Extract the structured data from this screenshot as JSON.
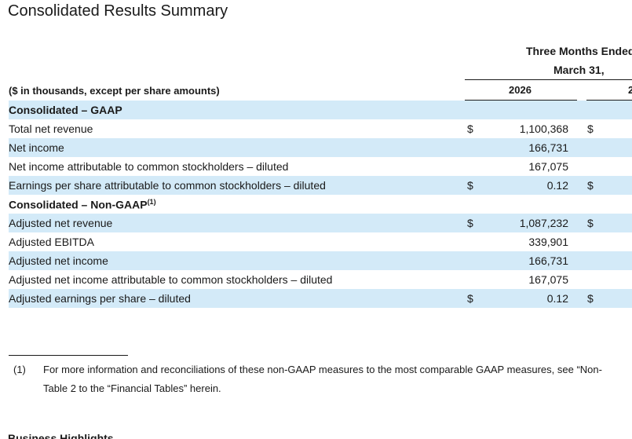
{
  "title": "Consolidated Results Summary",
  "header": {
    "period_line1": "Three Months Ended",
    "period_line2": "March 31,",
    "units": "($ in thousands, except per share amounts)",
    "year1": "2026",
    "year2": "2"
  },
  "rows": [
    {
      "label": "Consolidated – GAAP",
      "section": true
    },
    {
      "label": "Total net revenue",
      "cur1": "$",
      "val1": "1,100,368",
      "cur2": "$"
    },
    {
      "label": "Net income",
      "cur1": "",
      "val1": "166,731",
      "cur2": ""
    },
    {
      "label": "Net income attributable to common stockholders – diluted",
      "cur1": "",
      "val1": "167,075",
      "cur2": ""
    },
    {
      "label": "Earnings per share attributable to common stockholders – diluted",
      "cur1": "$",
      "val1": "0.12",
      "cur2": "$"
    },
    {
      "label": "Consolidated – Non-GAAP",
      "sup": "(1)",
      "section": true
    },
    {
      "label": "Adjusted net revenue",
      "cur1": "$",
      "val1": "1,087,232",
      "cur2": "$"
    },
    {
      "label": "Adjusted EBITDA",
      "cur1": "",
      "val1": "339,901",
      "cur2": ""
    },
    {
      "label": "Adjusted net income",
      "cur1": "",
      "val1": "166,731",
      "cur2": ""
    },
    {
      "label": "Adjusted net income attributable to common stockholders – diluted",
      "cur1": "",
      "val1": "167,075",
      "cur2": ""
    },
    {
      "label": "Adjusted earnings per share – diluted",
      "cur1": "$",
      "val1": "0.12",
      "cur2": "$"
    }
  ],
  "footnote": {
    "number": "(1)",
    "line1": "For more information and reconciliations of these non-GAAP measures to the most comparable GAAP measures, see “Non-",
    "line2": "Table 2 to the “Financial Tables” herein."
  },
  "next_heading": "Business Highlights"
}
